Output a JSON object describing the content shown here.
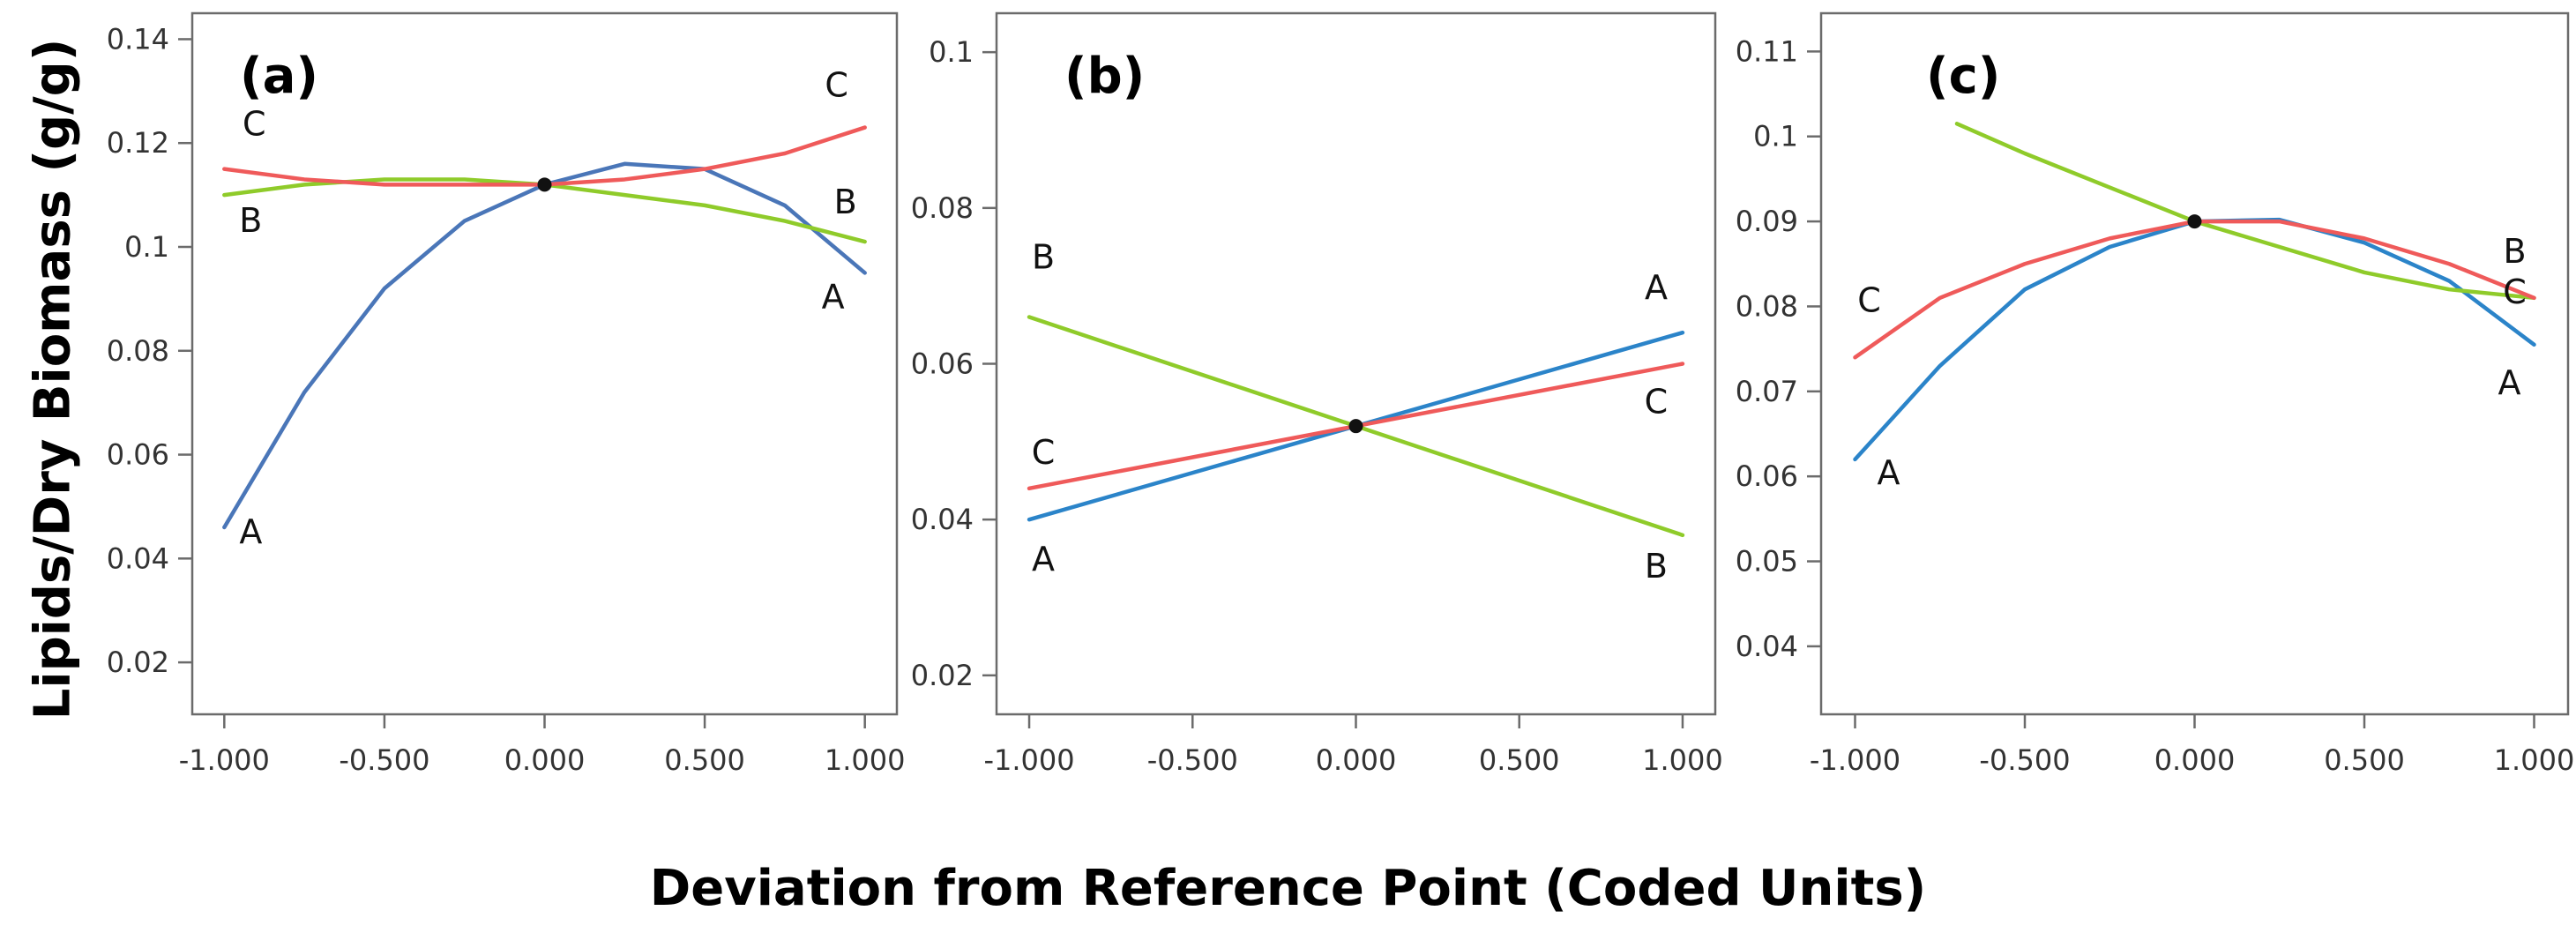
{
  "y_axis_label": "Lipids/Dry Biomass (g/g)",
  "x_axis_label": "Deviation from Reference Point (Coded Units)",
  "chart_data": [
    {
      "type": "line",
      "panel_label": "(a)",
      "xlabel": "Deviation from Reference Point (Coded Units)",
      "ylabel": "Lipids/Dry Biomass (g/g)",
      "xlim": [
        -1.1,
        1.1
      ],
      "ylim": [
        0.01,
        0.145
      ],
      "x_ticks": [
        -1,
        -0.5,
        0,
        0.5,
        1
      ],
      "x_tick_labels": [
        "-1.000",
        "-0.500",
        "0.000",
        "0.500",
        "1.000"
      ],
      "y_ticks": [
        0.02,
        0.04,
        0.06,
        0.08,
        0.1,
        0.12,
        0.14
      ],
      "y_tick_labels": [
        "0.02",
        "0.04",
        "0.06",
        "0.08",
        "0.1",
        "0.12",
        "0.14"
      ],
      "reference_point": [
        0,
        0.112
      ],
      "series": [
        {
          "name": "A",
          "color": "#4a76b8",
          "label_start": "A",
          "label_end": "A",
          "x": [
            -1,
            -0.75,
            -0.5,
            -0.25,
            0,
            0.25,
            0.5,
            0.75,
            1
          ],
          "y": [
            0.046,
            0.072,
            0.092,
            0.105,
            0.112,
            0.116,
            0.115,
            0.108,
            0.095
          ]
        },
        {
          "name": "B",
          "color": "#8fcb2a",
          "label_start": "B",
          "label_end": "B",
          "x": [
            -1,
            -0.75,
            -0.5,
            -0.25,
            0,
            0.25,
            0.5,
            0.75,
            1
          ],
          "y": [
            0.11,
            0.112,
            0.113,
            0.113,
            0.112,
            0.11,
            0.108,
            0.105,
            0.101
          ]
        },
        {
          "name": "C",
          "color": "#ef5a5a",
          "label_start": "C",
          "label_end": "C",
          "x": [
            -1,
            -0.75,
            -0.5,
            -0.25,
            0,
            0.25,
            0.5,
            0.75,
            1
          ],
          "y": [
            0.115,
            0.113,
            0.112,
            0.112,
            0.112,
            0.113,
            0.115,
            0.118,
            0.123
          ]
        }
      ]
    },
    {
      "type": "line",
      "panel_label": "(b)",
      "xlabel": "Deviation from Reference Point (Coded Units)",
      "ylabel": "Lipids/Dry Biomass (g/g)",
      "xlim": [
        -1.1,
        1.1
      ],
      "ylim": [
        0.015,
        0.105
      ],
      "x_ticks": [
        -1,
        -0.5,
        0,
        0.5,
        1
      ],
      "x_tick_labels": [
        "-1.000",
        "-0.500",
        "0.000",
        "0.500",
        "1.000"
      ],
      "y_ticks": [
        0.02,
        0.04,
        0.06,
        0.08,
        0.1
      ],
      "y_tick_labels": [
        "0.02",
        "0.04",
        "0.06",
        "0.08",
        "0.1"
      ],
      "reference_point": [
        0,
        0.052
      ],
      "series": [
        {
          "name": "A",
          "color": "#2b84c9",
          "label_start": "A",
          "label_end": "A",
          "x": [
            -1,
            0,
            1
          ],
          "y": [
            0.04,
            0.052,
            0.064
          ]
        },
        {
          "name": "B",
          "color": "#8fcb2a",
          "label_start": "B",
          "label_end": "B",
          "x": [
            -1,
            0,
            1
          ],
          "y": [
            0.066,
            0.052,
            0.038
          ]
        },
        {
          "name": "C",
          "color": "#ef5a5a",
          "label_start": "C",
          "label_end": "C",
          "x": [
            -1,
            0,
            1
          ],
          "y": [
            0.044,
            0.052,
            0.06
          ]
        }
      ]
    },
    {
      "type": "line",
      "panel_label": "(c)",
      "xlabel": "Deviation from Reference Point (Coded Units)",
      "ylabel": "Lipids/Dry Biomass (g/g)",
      "xlim": [
        -1.1,
        1.1
      ],
      "ylim": [
        0.032,
        0.1145
      ],
      "x_ticks": [
        -1,
        -0.5,
        0,
        0.5,
        1
      ],
      "x_tick_labels": [
        "-1.000",
        "-0.500",
        "0.000",
        "0.500",
        "1.000"
      ],
      "y_ticks": [
        0.04,
        0.05,
        0.06,
        0.07,
        0.08,
        0.09,
        0.1,
        0.11
      ],
      "y_tick_labels": [
        "0.04",
        "0.05",
        "0.06",
        "0.07",
        "0.08",
        "0.09",
        "0.1",
        "0.11"
      ],
      "reference_point": [
        0,
        0.09
      ],
      "series": [
        {
          "name": "A",
          "color": "#2b84c9",
          "label_start": "A",
          "label_end": "A",
          "x": [
            -1,
            -0.75,
            -0.5,
            -0.25,
            0,
            0.25,
            0.5,
            0.75,
            1
          ],
          "y": [
            0.062,
            0.073,
            0.082,
            0.087,
            0.09,
            0.0902,
            0.0875,
            0.083,
            0.0755
          ]
        },
        {
          "name": "B",
          "color": "#8fcb2a",
          "label_start": "B",
          "label_end": "B",
          "x": [
            -0.7,
            -0.5,
            -0.25,
            0,
            0.25,
            0.5,
            0.75,
            1
          ],
          "y": [
            0.1015,
            0.098,
            0.094,
            0.09,
            0.087,
            0.084,
            0.082,
            0.081
          ]
        },
        {
          "name": "C",
          "color": "#ef5a5a",
          "label_start": "C",
          "label_end": "C",
          "x": [
            -1,
            -0.75,
            -0.5,
            -0.25,
            0,
            0.25,
            0.5,
            0.75,
            1
          ],
          "y": [
            0.074,
            0.081,
            0.085,
            0.088,
            0.09,
            0.09,
            0.088,
            0.085,
            0.081
          ]
        }
      ]
    }
  ]
}
